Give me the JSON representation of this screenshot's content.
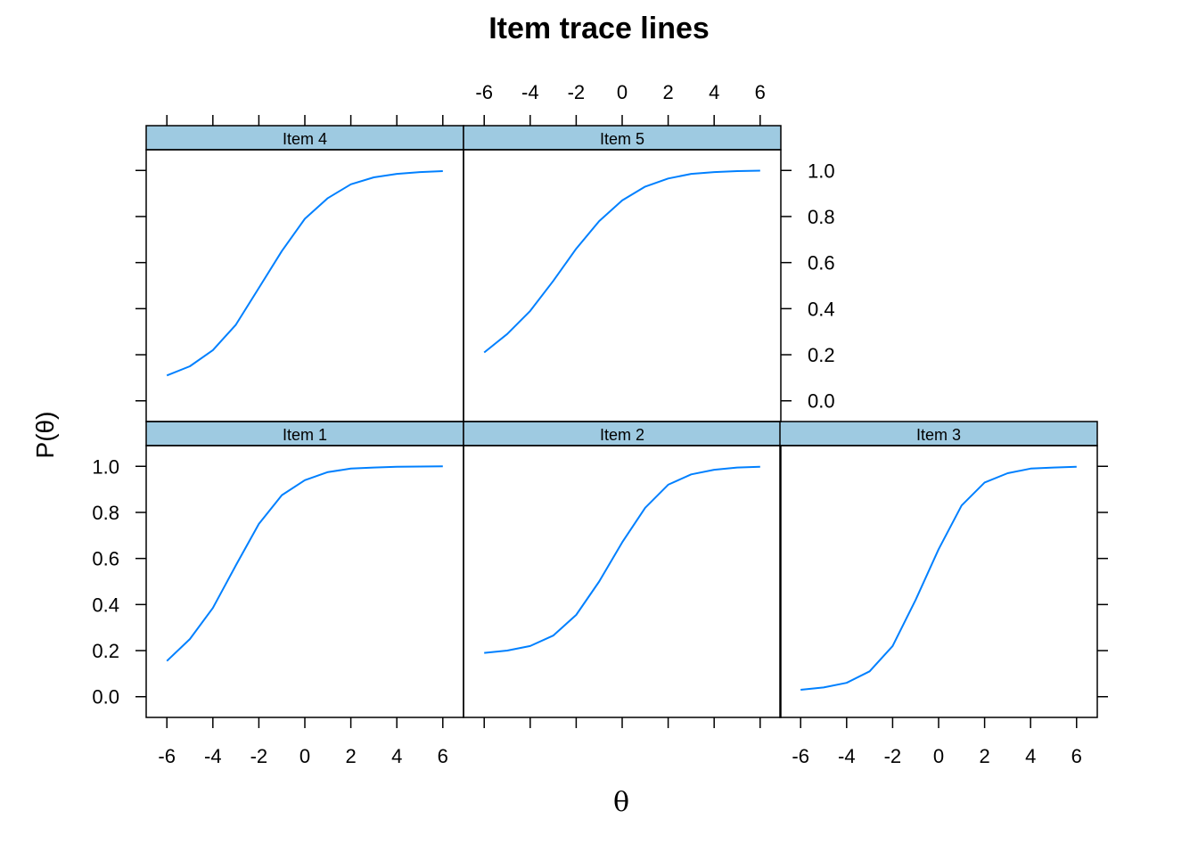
{
  "chart_data": {
    "type": "line",
    "title": "Item trace lines",
    "xlabel": "θ",
    "ylabel": "P(θ)",
    "xlim": [
      -6.9,
      6.9
    ],
    "ylim": [
      -0.09,
      1.09
    ],
    "x_ticks": [
      -6,
      -4,
      -2,
      0,
      2,
      4,
      6
    ],
    "x_tick_labels": [
      "-6",
      "-4",
      "-2",
      "0",
      "2",
      "4",
      "6"
    ],
    "y_ticks": [
      0,
      0.2,
      0.4,
      0.6,
      0.8,
      1
    ],
    "y_tick_labels": [
      "0.0",
      "0.2",
      "0.4",
      "0.6",
      "0.8",
      "1.0"
    ],
    "line_color": "#0080ff",
    "strip_color": "#9ecae1",
    "layout": "lattice 3 columns x 2 rows",
    "panels": [
      {
        "name": "Item 1",
        "row": 0,
        "col": 0,
        "x": [
          -6,
          -5,
          -4,
          -3,
          -2,
          -1,
          0,
          1,
          2,
          3,
          4,
          5,
          6
        ],
        "y": [
          0.155,
          0.25,
          0.385,
          0.57,
          0.75,
          0.875,
          0.94,
          0.975,
          0.99,
          0.995,
          0.998,
          0.999,
          1.0
        ]
      },
      {
        "name": "Item 2",
        "row": 0,
        "col": 1,
        "x": [
          -6,
          -5,
          -4,
          -3,
          -2,
          -1,
          0,
          1,
          2,
          3,
          4,
          5,
          6
        ],
        "y": [
          0.19,
          0.2,
          0.22,
          0.265,
          0.355,
          0.5,
          0.67,
          0.82,
          0.92,
          0.965,
          0.985,
          0.995,
          0.998
        ]
      },
      {
        "name": "Item 3",
        "row": 0,
        "col": 2,
        "x": [
          -6,
          -5,
          -4,
          -3,
          -2,
          -1,
          0,
          1,
          2,
          3,
          4,
          5,
          6
        ],
        "y": [
          0.03,
          0.04,
          0.06,
          0.11,
          0.22,
          0.42,
          0.64,
          0.83,
          0.93,
          0.97,
          0.99,
          0.995,
          0.998
        ]
      },
      {
        "name": "Item 4",
        "row": 1,
        "col": 0,
        "x": [
          -6,
          -5,
          -4,
          -3,
          -2,
          -1,
          0,
          1,
          2,
          3,
          4,
          5,
          6
        ],
        "y": [
          0.11,
          0.15,
          0.22,
          0.33,
          0.49,
          0.65,
          0.79,
          0.88,
          0.94,
          0.97,
          0.985,
          0.993,
          0.997
        ]
      },
      {
        "name": "Item 5",
        "row": 1,
        "col": 1,
        "x": [
          -6,
          -5,
          -4,
          -3,
          -2,
          -1,
          0,
          1,
          2,
          3,
          4,
          5,
          6
        ],
        "y": [
          0.21,
          0.29,
          0.39,
          0.52,
          0.66,
          0.78,
          0.87,
          0.93,
          0.965,
          0.985,
          0.993,
          0.997,
          0.999
        ]
      }
    ]
  }
}
